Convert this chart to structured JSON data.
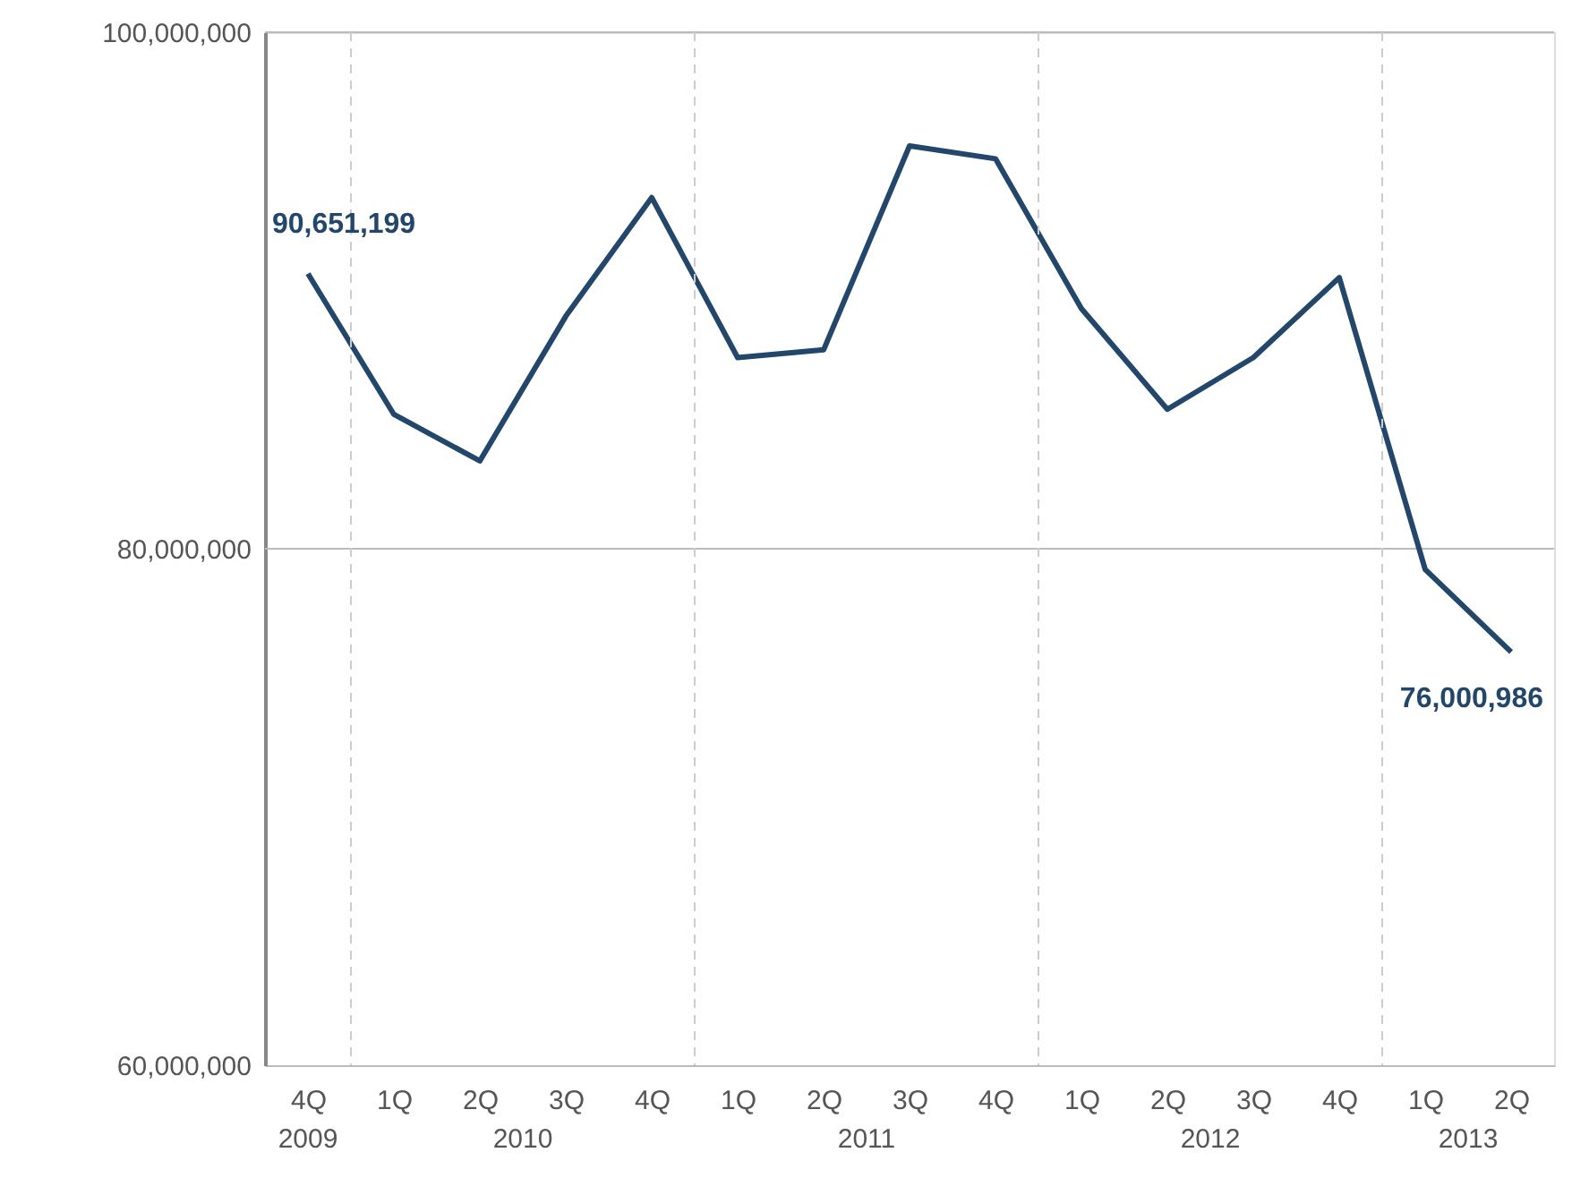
{
  "chart_data": {
    "type": "line",
    "categories": [
      "4Q",
      "1Q",
      "2Q",
      "3Q",
      "4Q",
      "1Q",
      "2Q",
      "3Q",
      "4Q",
      "1Q",
      "2Q",
      "3Q",
      "4Q",
      "1Q",
      "2Q"
    ],
    "values": [
      90651199,
      85200000,
      83400000,
      89000000,
      93600000,
      87400000,
      87700000,
      95600000,
      95100000,
      89300000,
      85400000,
      87400000,
      90500000,
      79200000,
      76000986
    ],
    "value_labels": [
      "90,651,199",
      null,
      null,
      null,
      null,
      null,
      null,
      null,
      null,
      null,
      null,
      null,
      null,
      null,
      "76,000,986"
    ],
    "color": "#23476b",
    "annotations": [
      "2009",
      "2010",
      "2011",
      "2012",
      "2013"
    ],
    "ylim": [
      60000000,
      100000000
    ],
    "yticks": [
      {
        "value": 60000000,
        "label": "60,000,000"
      },
      {
        "value": 80000000,
        "label": "80,000,000"
      },
      {
        "value": 100000000,
        "label": "100,000,000"
      }
    ],
    "ref_lines": [
      {
        "axis": "y",
        "value": 80000000,
        "color": "#bbbbbb"
      }
    ],
    "marker": "none",
    "line_style": "solid"
  }
}
